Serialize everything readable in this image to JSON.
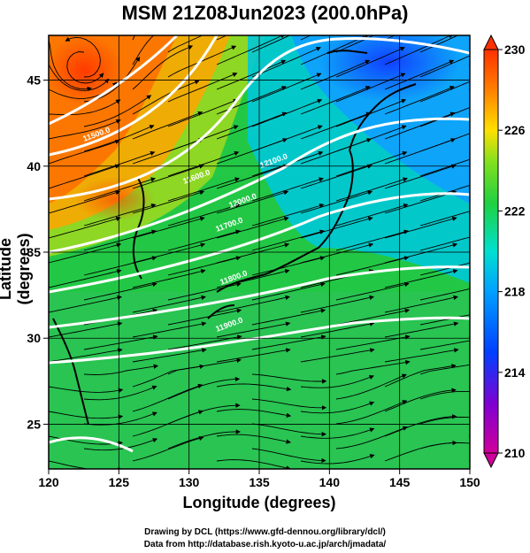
{
  "title": "MSM 21Z08Jun2023 (200.0hPa)",
  "axes": {
    "xlabel": "Longitude (degrees)",
    "ylabel": "Latitude  (degrees)",
    "xticks": [
      "120",
      "125",
      "130",
      "135",
      "140",
      "145",
      "150"
    ],
    "yticks": [
      "45",
      "40",
      "35",
      "30",
      "25"
    ]
  },
  "colorbar": {
    "ticks": [
      "230",
      "226",
      "222",
      "218",
      "214",
      "210"
    ],
    "colors": [
      "#d0009a",
      "#8000d0",
      "#0040ff",
      "#00a0ff",
      "#00e0d0",
      "#20d040",
      "#80e020",
      "#ffe000",
      "#ff8000",
      "#ff3000"
    ]
  },
  "contours": [
    "11500.0",
    "11600.0",
    "11700.0",
    "11800.0",
    "11900.0",
    "12000.0",
    "12100.0"
  ],
  "credits": {
    "line1": "Drawing by DCL (https://www.gfd-dennou.org/library/dcl/)",
    "line2": "Data from http://database.rish.kyoto-u.ac.jp/arch/jmadata/"
  },
  "chart_data": {
    "type": "heatmap",
    "title": "MSM 21Z08Jun2023 (200.0hPa)",
    "xlabel": "Longitude (degrees)",
    "ylabel": "Latitude  (degrees)",
    "xlim": [
      120,
      150
    ],
    "ylim": [
      22.4,
      47.6
    ],
    "color_range": [
      210,
      230
    ],
    "colorbar_ticks": [
      230,
      226,
      222,
      218,
      214,
      210
    ],
    "grid": true,
    "overlays": [
      "streamlines",
      "geopotential height contours",
      "coastlines"
    ]
  }
}
